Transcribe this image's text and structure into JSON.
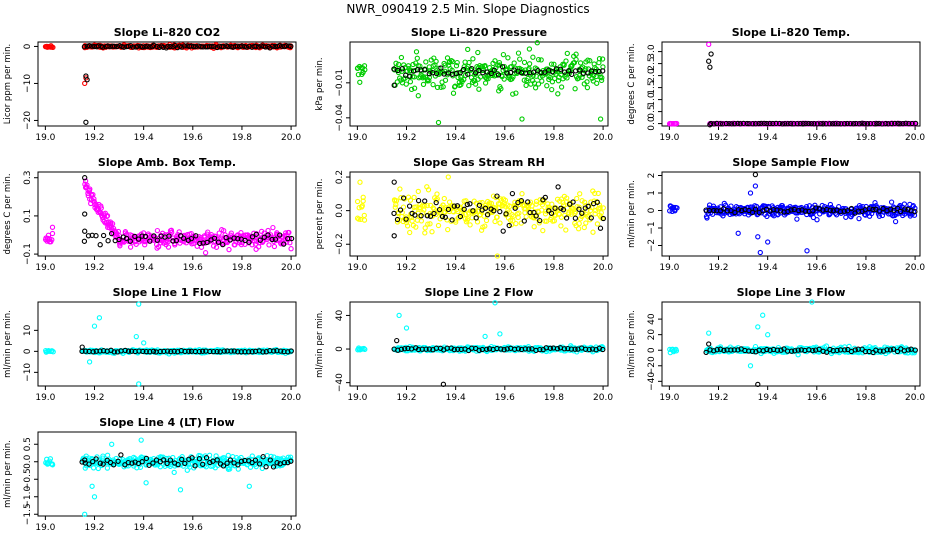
{
  "figure": {
    "title": "NWR_090419  2.5 Min. Slope Diagnostics",
    "colors": {
      "black": "#000000",
      "red": "#ff0000",
      "green": "#00cc00",
      "magenta": "#ff00ff",
      "yellow": "#ffff00",
      "blue": "#0000ff",
      "cyan": "#00ffff"
    }
  },
  "chart_data": [
    {
      "type": "scatter",
      "title": "Slope Li–820 CO2",
      "ylabel": "Licor ppm per min.",
      "xlim": [
        18.97,
        20.02
      ],
      "ylim": [
        -21.5,
        1.2
      ],
      "xticks": [
        19.0,
        19.2,
        19.4,
        19.6,
        19.8,
        20.0
      ],
      "xtick_labels": [
        "19.0",
        "19.2",
        "19.4",
        "19.6",
        "19.8",
        "20.0"
      ],
      "yticks": [
        0,
        -10,
        -20
      ],
      "ytick_labels": [
        "0",
        "−10",
        "−20"
      ],
      "color": "red",
      "series": [
        {
          "name": "1",
          "x0": 19.0,
          "x1": 19.03,
          "n": 10,
          "center": 0,
          "spread": 0.3,
          "outliers": []
        },
        {
          "name": "2",
          "x0": 19.16,
          "x1": 20.0,
          "n": 320,
          "center": 0,
          "spread": 0.3,
          "outliers": [
            [
              19.16,
              -10.0
            ],
            [
              19.165,
              -8.5
            ]
          ]
        }
      ],
      "black_series": [
        {
          "x0": 19.16,
          "x1": 20.0,
          "n": 90,
          "center": 0,
          "spread": 0.25,
          "outliers": [
            [
              19.165,
              -8.0
            ],
            [
              19.17,
              -9.0
            ],
            [
              19.165,
              -20.5
            ]
          ]
        }
      ]
    },
    {
      "type": "scatter",
      "title": "Slope Li–820 Pressure",
      "ylabel": "kPa per min.",
      "xlim": [
        18.97,
        20.02
      ],
      "ylim": [
        -0.047,
        0.025
      ],
      "xticks": [
        19.0,
        19.2,
        19.4,
        19.6,
        19.8,
        20.0
      ],
      "xtick_labels": [
        "19.0",
        "19.2",
        "19.4",
        "19.6",
        "19.8",
        "20.0"
      ],
      "yticks": [
        -0.01,
        -0.04
      ],
      "ytick_labels": [
        "−0.01",
        "−0.04"
      ],
      "color": "green",
      "series": [
        {
          "name": "1",
          "x0": 19.0,
          "x1": 19.03,
          "n": 12,
          "center": 0.0,
          "spread": 0.006,
          "outliers": []
        },
        {
          "name": "2",
          "x0": 19.15,
          "x1": 20.0,
          "n": 320,
          "center": 0.0,
          "spread": 0.012,
          "outliers": [
            [
              19.33,
              -0.044
            ],
            [
              19.67,
              -0.041
            ],
            [
              19.99,
              -0.041
            ],
            [
              19.7,
              0.019
            ],
            [
              19.49,
              0.016
            ]
          ]
        }
      ],
      "black_series": [
        {
          "x0": 19.15,
          "x1": 20.0,
          "n": 55,
          "center": 0.0,
          "spread": 0.003,
          "outliers": [
            [
              19.15,
              -0.012
            ]
          ]
        }
      ]
    },
    {
      "type": "scatter",
      "title": "Slope Li–820 Temp.",
      "ylabel": "degrees C per min.",
      "xlim": [
        18.97,
        20.02
      ],
      "ylim": [
        -0.1,
        3.4
      ],
      "xticks": [
        19.0,
        19.2,
        19.4,
        19.6,
        19.8,
        20.0
      ],
      "xtick_labels": [
        "19.0",
        "19.2",
        "19.4",
        "19.6",
        "19.8",
        "20.0"
      ],
      "yticks": [
        0,
        0.5,
        1.0,
        1.5,
        2.0,
        2.5,
        3.0
      ],
      "ytick_labels": [
        "0.0",
        "0.5",
        "1.0",
        "1.5",
        "2.0",
        "2.5",
        "3.0"
      ],
      "color": "magenta",
      "series": [
        {
          "name": "1",
          "x0": 19.0,
          "x1": 19.03,
          "n": 10,
          "center": 0.0,
          "spread": 0.01,
          "outliers": []
        },
        {
          "name": "2",
          "x0": 19.17,
          "x1": 20.0,
          "n": 300,
          "center": 0.0,
          "spread": 0.01,
          "outliers": [
            [
              19.16,
              3.3
            ],
            [
              19.165,
              0.0
            ]
          ]
        }
      ],
      "black_series": [
        {
          "x0": 19.17,
          "x1": 20.0,
          "n": 70,
          "center": 0.0,
          "spread": 0.01,
          "outliers": [
            [
              19.16,
              2.6
            ],
            [
              19.165,
              2.35
            ],
            [
              19.17,
              2.9
            ],
            [
              19.165,
              -0.05
            ]
          ]
        }
      ]
    },
    {
      "type": "scatter",
      "title": "Slope Amb. Box Temp.",
      "ylabel": "degrees C per min.",
      "xlim": [
        18.97,
        20.02
      ],
      "ylim": [
        -0.11,
        0.33
      ],
      "xticks": [
        19.0,
        19.2,
        19.4,
        19.6,
        19.8,
        20.0
      ],
      "xtick_labels": [
        "19.0",
        "19.2",
        "19.4",
        "19.6",
        "19.8",
        "20.0"
      ],
      "yticks": [
        -0.1,
        0.1,
        0.3
      ],
      "ytick_labels": [
        "−0.1",
        "0.1",
        "0.3"
      ],
      "color": "magenta",
      "series": [
        {
          "name": "1",
          "x0": 19.0,
          "x1": 19.03,
          "n": 12,
          "center": -0.03,
          "spread": 0.04,
          "outliers": []
        },
        {
          "name": "2",
          "x0": 19.16,
          "x1": 19.3,
          "n": 70,
          "center": "decay",
          "spread": 0.03,
          "outliers": []
        },
        {
          "name": "3",
          "x0": 19.3,
          "x1": 20.0,
          "n": 260,
          "center": -0.02,
          "spread": 0.035,
          "outliers": []
        }
      ],
      "black_series": [
        {
          "x0": 19.16,
          "x1": 20.0,
          "n": 55,
          "center": -0.02,
          "spread": 0.03,
          "outliers": [
            [
              19.16,
              0.3
            ],
            [
              19.16,
              0.11
            ],
            [
              19.16,
              0.02
            ]
          ]
        }
      ]
    },
    {
      "type": "scatter",
      "title": "Slope Gas Stream RH",
      "ylabel": "percent per min.",
      "xlim": [
        18.97,
        20.02
      ],
      "ylim": [
        -0.27,
        0.23
      ],
      "xticks": [
        19.0,
        19.2,
        19.4,
        19.6,
        19.8,
        20.0
      ],
      "xtick_labels": [
        "19.0",
        "19.2",
        "19.4",
        "19.6",
        "19.8",
        "20.0"
      ],
      "yticks": [
        -0.2,
        0.0,
        0.2
      ],
      "ytick_labels": [
        "−0.2",
        "0.0",
        "0.2"
      ],
      "color": "yellow",
      "series": [
        {
          "name": "1",
          "x0": 19.0,
          "x1": 19.03,
          "n": 12,
          "center": 0.02,
          "spread": 0.09,
          "outliers": []
        },
        {
          "name": "2",
          "x0": 19.15,
          "x1": 20.0,
          "n": 320,
          "center": 0.0,
          "spread": 0.09,
          "outliers": [
            [
              19.57,
              -0.27
            ],
            [
              19.37,
              0.2
            ]
          ]
        }
      ],
      "black_series": [
        {
          "x0": 19.15,
          "x1": 20.0,
          "n": 70,
          "center": 0.0,
          "spread": 0.08,
          "outliers": [
            [
              19.15,
              0.17
            ],
            [
              19.15,
              -0.15
            ]
          ]
        }
      ]
    },
    {
      "type": "scatter",
      "title": "Slope Sample Flow",
      "ylabel": "ml/min per min.",
      "xlim": [
        18.97,
        20.02
      ],
      "ylim": [
        -2.6,
        2.2
      ],
      "xticks": [
        19.0,
        19.2,
        19.4,
        19.6,
        19.8,
        20.0
      ],
      "xtick_labels": [
        "19.0",
        "19.2",
        "19.4",
        "19.6",
        "19.8",
        "20.0"
      ],
      "yticks": [
        -2,
        -1,
        0,
        1,
        2
      ],
      "ytick_labels": [
        "−2",
        "−1",
        "0",
        "1",
        "2"
      ],
      "color": "blue",
      "series": [
        {
          "name": "1",
          "x0": 19.0,
          "x1": 19.03,
          "n": 10,
          "center": 0.0,
          "spread": 0.2,
          "outliers": []
        },
        {
          "name": "2",
          "x0": 19.15,
          "x1": 20.0,
          "n": 330,
          "center": 0.0,
          "spread": 0.3,
          "outliers": [
            [
              19.37,
              -2.4
            ],
            [
              19.56,
              -2.3
            ],
            [
              19.35,
              1.4
            ],
            [
              19.36,
              -1.5
            ],
            [
              19.33,
              1.0
            ],
            [
              19.4,
              -1.8
            ],
            [
              19.28,
              -1.3
            ]
          ]
        }
      ],
      "black_series": [
        {
          "x0": 19.15,
          "x1": 20.0,
          "n": 60,
          "center": 0.0,
          "spread": 0.1,
          "outliers": [
            [
              19.35,
              2.05
            ]
          ]
        }
      ]
    },
    {
      "type": "scatter",
      "title": "Slope Line 1 Flow",
      "ylabel": "ml/min per min.",
      "xlim": [
        18.97,
        20.02
      ],
      "ylim": [
        -16.5,
        23.5
      ],
      "xticks": [
        19.0,
        19.2,
        19.4,
        19.6,
        19.8,
        20.0
      ],
      "xtick_labels": [
        "19.0",
        "19.2",
        "19.4",
        "19.6",
        "19.8",
        "20.0"
      ],
      "yticks": [
        -10,
        0,
        10
      ],
      "ytick_labels": [
        "−10",
        "0",
        "10"
      ],
      "color": "cyan",
      "series": [
        {
          "name": "1",
          "x0": 19.0,
          "x1": 19.03,
          "n": 8,
          "center": 0.0,
          "spread": 0.8,
          "outliers": []
        },
        {
          "name": "2",
          "x0": 19.15,
          "x1": 20.0,
          "n": 320,
          "center": 0.0,
          "spread": 0.6,
          "outliers": [
            [
              19.38,
              -15.5
            ],
            [
              19.38,
              22.5
            ],
            [
              19.22,
              16.0
            ],
            [
              19.2,
              12.0
            ],
            [
              19.37,
              7.0
            ],
            [
              19.18,
              -5.0
            ],
            [
              19.4,
              4.0
            ]
          ]
        }
      ],
      "black_series": [
        {
          "x0": 19.15,
          "x1": 20.0,
          "n": 60,
          "center": 0.0,
          "spread": 0.3,
          "outliers": [
            [
              19.15,
              2.0
            ]
          ]
        }
      ]
    },
    {
      "type": "scatter",
      "title": "Slope Line 2 Flow",
      "ylabel": "ml/min per min.",
      "xlim": [
        18.97,
        20.02
      ],
      "ylim": [
        -44,
        56
      ],
      "xticks": [
        19.0,
        19.2,
        19.4,
        19.6,
        19.8,
        20.0
      ],
      "xtick_labels": [
        "19.0",
        "19.2",
        "19.4",
        "19.6",
        "19.8",
        "20.0"
      ],
      "yticks": [
        -40,
        0,
        40
      ],
      "ytick_labels": [
        "−40",
        "0",
        "40"
      ],
      "color": "cyan",
      "series": [
        {
          "name": "1",
          "x0": 19.0,
          "x1": 19.03,
          "n": 8,
          "center": 0.0,
          "spread": 1.5,
          "outliers": []
        },
        {
          "name": "2",
          "x0": 19.15,
          "x1": 20.0,
          "n": 320,
          "center": 0.0,
          "spread": 2.0,
          "outliers": [
            [
              19.56,
              55.0
            ],
            [
              19.17,
              40.0
            ],
            [
              19.2,
              25.0
            ],
            [
              19.52,
              15.0
            ],
            [
              19.58,
              18.0
            ]
          ]
        }
      ],
      "black_series": [
        {
          "x0": 19.15,
          "x1": 20.0,
          "n": 60,
          "center": 0.0,
          "spread": 1.5,
          "outliers": [
            [
              19.35,
              -42.0
            ],
            [
              19.16,
              10.0
            ]
          ]
        }
      ]
    },
    {
      "type": "scatter",
      "title": "Slope Line 3 Flow",
      "ylabel": "ml/min per min.",
      "xlim": [
        18.97,
        20.02
      ],
      "ylim": [
        -46,
        62
      ],
      "xticks": [
        19.0,
        19.2,
        19.4,
        19.6,
        19.8,
        20.0
      ],
      "xtick_labels": [
        "19.0",
        "19.2",
        "19.4",
        "19.6",
        "19.8",
        "20.0"
      ],
      "yticks": [
        -40,
        -20,
        0,
        20,
        40
      ],
      "ytick_labels": [
        "−40",
        "−20",
        "0",
        "20",
        "40"
      ],
      "color": "cyan",
      "series": [
        {
          "name": "1",
          "x0": 19.0,
          "x1": 19.03,
          "n": 8,
          "center": 0.0,
          "spread": 2.0,
          "outliers": []
        },
        {
          "name": "2",
          "x0": 19.15,
          "x1": 20.0,
          "n": 320,
          "center": 0.0,
          "spread": 3.0,
          "outliers": [
            [
              19.58,
              62.0
            ],
            [
              19.38,
              45.0
            ],
            [
              19.36,
              30.0
            ],
            [
              19.33,
              -20.0
            ],
            [
              19.4,
              20.0
            ],
            [
              19.16,
              22.0
            ]
          ]
        }
      ],
      "black_series": [
        {
          "x0": 19.15,
          "x1": 20.0,
          "n": 60,
          "center": 0.0,
          "spread": 2.0,
          "outliers": [
            [
              19.36,
              -44.0
            ],
            [
              19.16,
              8.0
            ]
          ]
        }
      ]
    },
    {
      "type": "scatter",
      "title": "Slope Line 4 (LT) Flow",
      "ylabel": "ml/min per min.",
      "xlim": [
        18.97,
        20.02
      ],
      "ylim": [
        -1.55,
        0.85
      ],
      "xticks": [
        19.0,
        19.2,
        19.4,
        19.6,
        19.8,
        20.0
      ],
      "xtick_labels": [
        "19.0",
        "19.2",
        "19.4",
        "19.6",
        "19.8",
        "20.0"
      ],
      "yticks": [
        -1.5,
        -1.0,
        -0.5,
        0.0,
        0.5
      ],
      "ytick_labels": [
        "−1.5",
        "−1.0",
        "−0.5",
        "0.0",
        "0.5"
      ],
      "color": "cyan",
      "series": [
        {
          "name": "1",
          "x0": 19.0,
          "x1": 19.03,
          "n": 10,
          "center": 0.0,
          "spread": 0.15,
          "outliers": []
        },
        {
          "name": "2",
          "x0": 19.15,
          "x1": 20.0,
          "n": 320,
          "center": 0.0,
          "spread": 0.15,
          "outliers": [
            [
              19.16,
              -1.5
            ],
            [
              19.39,
              0.62
            ],
            [
              19.2,
              -1.0
            ],
            [
              19.19,
              -0.7
            ],
            [
              19.55,
              -0.8
            ],
            [
              19.83,
              -0.7
            ],
            [
              19.41,
              -0.6
            ],
            [
              19.27,
              0.5
            ]
          ]
        }
      ],
      "black_series": [
        {
          "x0": 19.15,
          "x1": 20.0,
          "n": 60,
          "center": 0.0,
          "spread": 0.12,
          "outliers": [
            [
              19.16,
              0.05
            ]
          ]
        }
      ]
    }
  ]
}
